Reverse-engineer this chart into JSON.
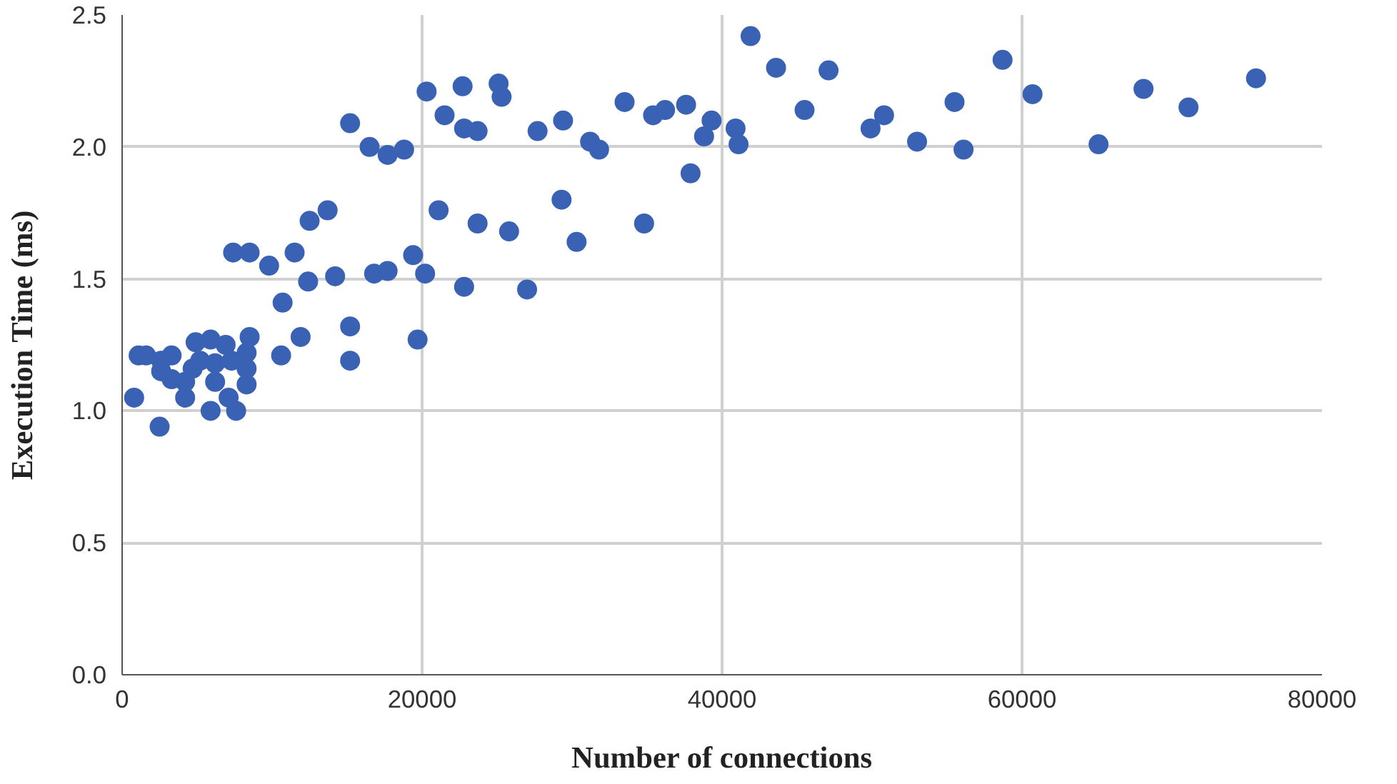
{
  "chart_data": {
    "type": "scatter",
    "xlabel": "Number of connections",
    "ylabel": "Execution Time (ms)",
    "xlim": [
      0,
      80000
    ],
    "xticks": [
      0,
      20000,
      40000,
      60000,
      80000
    ],
    "ylim": [
      0,
      2.5
    ],
    "yticks": [
      {
        "value": 0,
        "label": "0.0"
      },
      {
        "value": 0.5,
        "label": "0.5"
      },
      {
        "value": 1,
        "label": "1.0"
      },
      {
        "value": 1.5,
        "label": "1.5"
      },
      {
        "value": 2,
        "label": "2.0"
      },
      {
        "value": 2.5,
        "label": "2.5"
      }
    ],
    "grid": true,
    "marker": "circle",
    "series": [
      {
        "color": "#3a62b4",
        "x": [
          800,
          2500,
          1100,
          1600,
          2600,
          3300,
          2600,
          3300,
          4200,
          4200,
          4900,
          5900,
          6900,
          8500,
          5200,
          6200,
          7300,
          8300,
          8300,
          6200,
          8300,
          5900,
          7100,
          7600,
          4700,
          7400,
          8500,
          9800,
          11500,
          12400,
          14200,
          16800,
          17700,
          19400,
          20200,
          10700,
          11900,
          10600,
          15200,
          15200,
          19700,
          13700,
          12500,
          21100,
          23700,
          25800,
          22800,
          27000,
          29300,
          30300,
          34800,
          37900,
          15200,
          16500,
          17700,
          18800,
          20300,
          21500,
          22700,
          22800,
          23700,
          25100,
          25300,
          27700,
          29400,
          31200,
          31800,
          33500,
          35400,
          36200,
          37600,
          39300,
          38800,
          40900,
          41100,
          41900,
          43600,
          47100,
          45500,
          49900,
          50800,
          53000,
          55500,
          56100,
          58700,
          60700,
          65100,
          68100,
          71100,
          75600
        ],
        "values": [
          1.05,
          0.94,
          1.21,
          1.21,
          1.19,
          1.21,
          1.15,
          1.12,
          1.11,
          1.05,
          1.26,
          1.27,
          1.25,
          1.28,
          1.19,
          1.18,
          1.19,
          1.22,
          1.16,
          1.11,
          1.1,
          1.0,
          1.05,
          1.0,
          1.16,
          1.6,
          1.6,
          1.55,
          1.6,
          1.49,
          1.51,
          1.52,
          1.53,
          1.59,
          1.52,
          1.41,
          1.28,
          1.21,
          1.32,
          1.19,
          1.27,
          1.76,
          1.72,
          1.76,
          1.71,
          1.68,
          1.47,
          1.46,
          1.8,
          1.64,
          1.71,
          1.9,
          2.09,
          2.0,
          1.97,
          1.99,
          2.21,
          2.12,
          2.23,
          2.07,
          2.06,
          2.24,
          2.19,
          2.06,
          2.1,
          2.02,
          1.99,
          2.17,
          2.12,
          2.14,
          2.16,
          2.1,
          2.04,
          2.07,
          2.01,
          2.42,
          2.3,
          2.29,
          2.14,
          2.07,
          2.12,
          2.02,
          2.17,
          1.99,
          2.33,
          2.2,
          2.01,
          2.22,
          2.15,
          2.26
        ]
      }
    ]
  }
}
